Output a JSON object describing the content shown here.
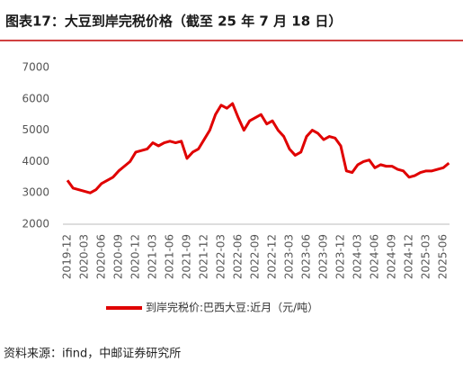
{
  "chart_data": {
    "type": "line",
    "title": "图表17：大豆到岸完税价格（截至 25 年 7 月 18 日）",
    "categories": [
      "2019-12",
      null,
      null,
      "2020-03",
      null,
      null,
      "2020-06",
      null,
      null,
      "2020-09",
      null,
      null,
      "2020-12",
      null,
      null,
      "2021-03",
      null,
      null,
      "2021-06",
      null,
      null,
      "2021-09",
      null,
      null,
      "2021-12",
      null,
      null,
      "2022-03",
      null,
      null,
      "2022-06",
      null,
      null,
      "2022-09",
      null,
      null,
      "2022-12",
      null,
      null,
      "2023-03",
      null,
      null,
      "2023-06",
      null,
      null,
      "2023-09",
      null,
      null,
      "2023-12",
      null,
      null,
      "2024-03",
      null,
      null,
      "2024-06",
      null,
      null,
      "2024-09",
      null,
      null,
      "2024-12",
      null,
      null,
      "2025-03",
      null,
      null,
      "2025-06",
      null
    ],
    "series": [
      {
        "name": "到岸完税价:巴西大豆:近月（元/吨）",
        "color": "#e00000",
        "values": [
          3400,
          3150,
          3100,
          3050,
          3000,
          3100,
          3300,
          3400,
          3500,
          3700,
          3850,
          4000,
          4300,
          4350,
          4400,
          4600,
          4500,
          4600,
          4650,
          4600,
          4650,
          4100,
          4300,
          4400,
          4700,
          5000,
          5500,
          5800,
          5700,
          5850,
          5400,
          5000,
          5300,
          5400,
          5500,
          5200,
          5300,
          5000,
          4800,
          4400,
          4200,
          4300,
          4800,
          5000,
          4900,
          4700,
          4800,
          4750,
          4500,
          3700,
          3650,
          3900,
          4000,
          4050,
          3800,
          3900,
          3850,
          3850,
          3750,
          3700,
          3500,
          3550,
          3650,
          3700,
          3700,
          3750,
          3800,
          3950
        ]
      }
    ],
    "ylim": [
      2000,
      7000
    ],
    "yticks": [
      2000,
      3000,
      4000,
      5000,
      6000,
      7000
    ],
    "grid": false,
    "source": "资料来源：ifind，中邮证券研究所"
  }
}
